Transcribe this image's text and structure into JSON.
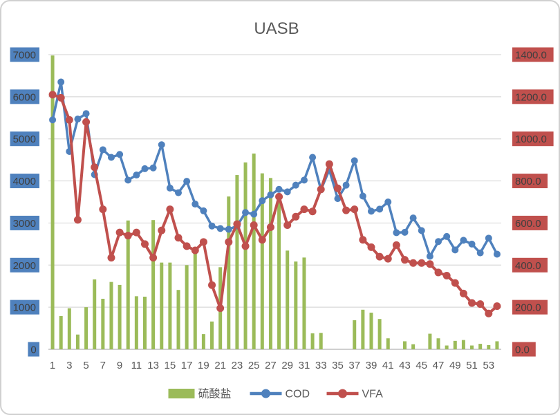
{
  "title": "UASB",
  "colors": {
    "bar_green": "#9BBB59",
    "cod_blue": "#4F81BD",
    "vfa_red": "#C0504D",
    "gridline": "#D9D9D9",
    "axis_line": "#BFBFBF",
    "axis_text": "#595959",
    "axis_box_text": "#3F3F3F"
  },
  "chart_data": {
    "type": "combo-bar-line",
    "x": [
      1,
      2,
      3,
      4,
      5,
      6,
      7,
      8,
      9,
      10,
      11,
      12,
      13,
      14,
      15,
      16,
      17,
      18,
      19,
      20,
      21,
      22,
      23,
      24,
      25,
      26,
      27,
      28,
      29,
      30,
      31,
      32,
      33,
      34,
      35,
      36,
      37,
      38,
      39,
      40,
      41,
      42,
      43,
      44,
      45,
      46,
      47,
      48,
      49,
      50,
      51,
      52,
      53,
      54
    ],
    "x_tick_labels": [
      "1",
      "3",
      "5",
      "7",
      "9",
      "11",
      "13",
      "15",
      "17",
      "19",
      "21",
      "23",
      "25",
      "27",
      "29",
      "31",
      "33",
      "35",
      "37",
      "39",
      "41",
      "43",
      "45",
      "47",
      "49",
      "51",
      "53"
    ],
    "left_axis": {
      "min": 0,
      "max": 7000,
      "step": 1000,
      "labels": [
        "0",
        "1000",
        "2000",
        "3000",
        "4000",
        "5000",
        "6000",
        "7000"
      ],
      "label_bg": "#4F81BD"
    },
    "right_axis": {
      "min": 0.0,
      "max": 1400.0,
      "step": 200.0,
      "labels": [
        "0.0",
        "200.0",
        "400.0",
        "600.0",
        "800.0",
        "1000.0",
        "1200.0",
        "1400.0"
      ],
      "label_bg": "#C0504D"
    },
    "grid": true,
    "legend_position": "bottom",
    "series": [
      {
        "name": "硫酸盐",
        "type": "bar",
        "axis": "left",
        "color": "#9BBB59",
        "values": [
          6980,
          790,
          975,
          350,
          1000,
          1660,
          1200,
          1600,
          1530,
          3060,
          1260,
          1250,
          3070,
          2060,
          2060,
          1410,
          2000,
          2330,
          360,
          660,
          1950,
          3630,
          4140,
          4440,
          4650,
          4180,
          4070,
          3520,
          2345,
          2085,
          2180,
          380,
          390,
          0,
          0,
          0,
          690,
          940,
          870,
          720,
          260,
          0,
          190,
          120,
          0,
          370,
          260,
          90,
          200,
          220,
          90,
          130,
          100,
          190
        ]
      },
      {
        "name": "COD",
        "type": "line",
        "axis": "left",
        "color": "#4F81BD",
        "values": [
          5450,
          6350,
          4700,
          5470,
          5600,
          4150,
          4740,
          4560,
          4630,
          4020,
          4140,
          4290,
          4310,
          4860,
          3830,
          3720,
          3990,
          3450,
          3290,
          2930,
          2870,
          2850,
          2930,
          3250,
          3210,
          3530,
          3670,
          3800,
          3740,
          3900,
          4020,
          4560,
          3790,
          4260,
          3580,
          3900,
          4480,
          3640,
          3280,
          3330,
          3500,
          2770,
          2780,
          3120,
          2820,
          2210,
          2560,
          2680,
          2360,
          2590,
          2500,
          2290,
          2640,
          2260
        ]
      },
      {
        "name": "VFA",
        "type": "line",
        "axis": "right",
        "color": "#C0504D",
        "values": [
          1210,
          1195,
          1090,
          615,
          1080,
          865,
          665,
          435,
          555,
          540,
          555,
          500,
          435,
          565,
          665,
          530,
          490,
          470,
          510,
          305,
          195,
          510,
          595,
          490,
          590,
          520,
          580,
          725,
          590,
          630,
          665,
          655,
          760,
          880,
          765,
          660,
          665,
          520,
          485,
          440,
          430,
          495,
          425,
          410,
          410,
          405,
          365,
          350,
          315,
          265,
          220,
          215,
          170,
          205
        ]
      }
    ]
  }
}
